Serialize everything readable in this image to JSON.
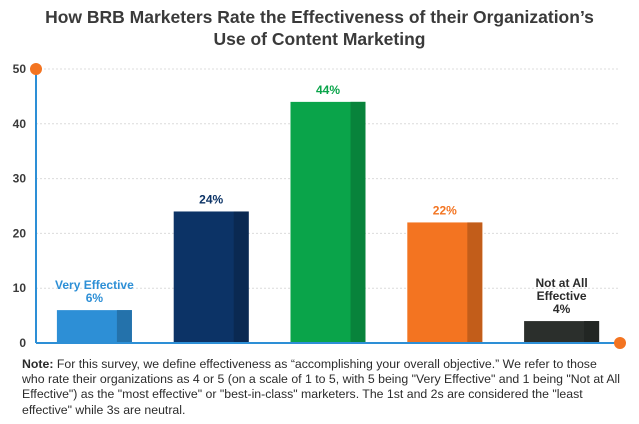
{
  "chart_data": {
    "type": "bar",
    "title": "How BRB Marketers Rate the Effectiveness of their Organization’s\nUse of Content Marketing",
    "categories": [
      "Very Effective",
      "",
      "",
      "",
      "Not at All Effective"
    ],
    "values": [
      6,
      24,
      44,
      22,
      4
    ],
    "data_labels": [
      [
        "Very Effective",
        "6%"
      ],
      [
        "24%"
      ],
      [
        "44%"
      ],
      [
        "22%"
      ],
      [
        "Not at All",
        "Effective",
        "4%"
      ]
    ],
    "colors": [
      "#2d8fd6",
      "#0c3366",
      "#0aa44a",
      "#f37421",
      "#2b2f2c"
    ],
    "label_colors": [
      "#2d8fd6",
      "#0c3366",
      "#0aa44a",
      "#f37421",
      "#2b2b2b"
    ],
    "ylim": [
      0,
      50
    ],
    "yticks": [
      "0",
      "10",
      "20",
      "30",
      "40",
      "50"
    ],
    "grid": true,
    "axis_color": "#2d8fd6",
    "marker_color": "#f37421"
  },
  "note": {
    "label": "Note:",
    "text": " For this survey, we define effectiveness as “accomplishing your overall objective.” We refer to those who rate their organizations as 4 or 5 (on a scale of 1 to 5, with 5 being \"Very Effective\" and 1 being \"Not at All Effective\") as the \"most effective\" or \"best-in-class\" marketers. The 1st and 2s are considered the \"least effective\" while 3s are neutral."
  }
}
